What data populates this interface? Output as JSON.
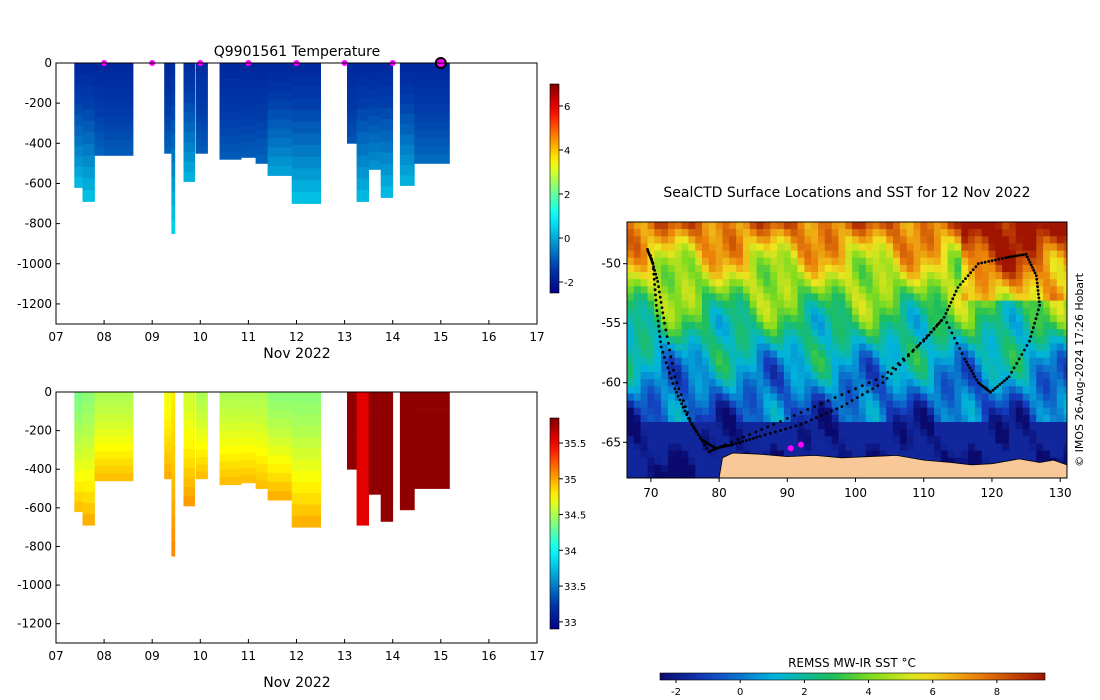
{
  "chart_data": [
    {
      "type": "heatmap",
      "title": "Q9901561  Temperature",
      "xlabel": "Nov 2022",
      "ylabel": "",
      "x_ticks": [
        "07",
        "08",
        "09",
        "10",
        "11",
        "12",
        "13",
        "14",
        "15",
        "16",
        "17"
      ],
      "xlim": [
        7,
        17
      ],
      "y_ticks": [
        0,
        -200,
        -400,
        -600,
        -800,
        -1000,
        -1200
      ],
      "ylim": [
        -1300,
        0
      ],
      "colorbar": {
        "ticks": [
          -2,
          0,
          2,
          4,
          6
        ],
        "range": [
          -2.5,
          7
        ]
      },
      "surface_markers": [
        8.0,
        9.0,
        10.0,
        11.0,
        12.0,
        13.0,
        14.0
      ],
      "current_marker": 15.0,
      "profiles": [
        {
          "x0": 7.38,
          "x1": 7.55,
          "depth": 620,
          "t_surface": -1.7,
          "t_bottom": 0.3
        },
        {
          "x0": 7.55,
          "x1": 7.8,
          "depth": 690,
          "t_surface": -1.7,
          "t_bottom": 0.4
        },
        {
          "x0": 7.8,
          "x1": 8.0,
          "depth": 460,
          "t_surface": -1.7,
          "t_bottom": -0.8
        },
        {
          "x0": 8.0,
          "x1": 8.6,
          "depth": 460,
          "t_surface": -1.7,
          "t_bottom": -0.9
        },
        {
          "x0": 9.25,
          "x1": 9.4,
          "depth": 450,
          "t_surface": -1.7,
          "t_bottom": -0.8
        },
        {
          "x0": 9.4,
          "x1": 9.47,
          "depth": 850,
          "t_surface": -1.6,
          "t_bottom": 0.6
        },
        {
          "x0": 9.65,
          "x1": 9.88,
          "depth": 590,
          "t_surface": -1.6,
          "t_bottom": 0.2
        },
        {
          "x0": 9.9,
          "x1": 10.15,
          "depth": 450,
          "t_surface": -1.6,
          "t_bottom": -0.9
        },
        {
          "x0": 10.4,
          "x1": 10.85,
          "depth": 480,
          "t_surface": -1.7,
          "t_bottom": -0.9
        },
        {
          "x0": 10.85,
          "x1": 11.15,
          "depth": 470,
          "t_surface": -1.7,
          "t_bottom": -0.9
        },
        {
          "x0": 11.15,
          "x1": 11.4,
          "depth": 500,
          "t_surface": -1.7,
          "t_bottom": -0.8
        },
        {
          "x0": 11.4,
          "x1": 11.9,
          "depth": 560,
          "t_surface": -1.7,
          "t_bottom": 0.0
        },
        {
          "x0": 11.9,
          "x1": 12.5,
          "depth": 700,
          "t_surface": -1.7,
          "t_bottom": 0.4
        },
        {
          "x0": 13.05,
          "x1": 13.25,
          "depth": 400,
          "t_surface": -1.7,
          "t_bottom": -1.0
        },
        {
          "x0": 13.25,
          "x1": 13.5,
          "depth": 690,
          "t_surface": -1.7,
          "t_bottom": 0.3
        },
        {
          "x0": 13.5,
          "x1": 13.75,
          "depth": 530,
          "t_surface": -1.7,
          "t_bottom": -0.2
        },
        {
          "x0": 13.75,
          "x1": 14.0,
          "depth": 670,
          "t_surface": -1.7,
          "t_bottom": 0.3
        },
        {
          "x0": 14.15,
          "x1": 14.45,
          "depth": 610,
          "t_surface": -1.7,
          "t_bottom": 0.2
        },
        {
          "x0": 14.45,
          "x1": 15.18,
          "depth": 500,
          "t_surface": -1.7,
          "t_bottom": -0.7
        }
      ]
    },
    {
      "type": "heatmap",
      "title": "",
      "xlabel": "Nov 2022",
      "ylabel": "",
      "x_ticks": [
        "07",
        "08",
        "09",
        "10",
        "11",
        "12",
        "13",
        "14",
        "15",
        "16",
        "17"
      ],
      "xlim": [
        7,
        17
      ],
      "y_ticks": [
        0,
        -200,
        -400,
        -600,
        -800,
        -1000,
        -1200
      ],
      "ylim": [
        -1300,
        0
      ],
      "colorbar": {
        "ticks": [
          33,
          33.5,
          34,
          34.5,
          35,
          35.5
        ],
        "range": [
          32.9,
          35.85
        ]
      },
      "profiles": [
        {
          "x0": 7.38,
          "x1": 7.55,
          "depth": 620,
          "s_surface": 34.35,
          "s_bottom": 34.95
        },
        {
          "x0": 7.55,
          "x1": 7.8,
          "depth": 690,
          "s_surface": 34.4,
          "s_bottom": 35.0
        },
        {
          "x0": 7.8,
          "x1": 8.0,
          "depth": 460,
          "s_surface": 34.5,
          "s_bottom": 34.95
        },
        {
          "x0": 8.0,
          "x1": 8.6,
          "depth": 460,
          "s_surface": 34.5,
          "s_bottom": 34.95
        },
        {
          "x0": 9.25,
          "x1": 9.4,
          "depth": 450,
          "s_surface": 34.7,
          "s_bottom": 35.0
        },
        {
          "x0": 9.4,
          "x1": 9.47,
          "depth": 850,
          "s_surface": 34.8,
          "s_bottom": 35.1
        },
        {
          "x0": 9.65,
          "x1": 9.88,
          "depth": 590,
          "s_surface": 34.6,
          "s_bottom": 35.05
        },
        {
          "x0": 9.9,
          "x1": 10.15,
          "depth": 450,
          "s_surface": 34.5,
          "s_bottom": 34.95
        },
        {
          "x0": 10.4,
          "x1": 10.85,
          "depth": 480,
          "s_surface": 34.5,
          "s_bottom": 34.95
        },
        {
          "x0": 10.85,
          "x1": 11.15,
          "depth": 470,
          "s_surface": 34.5,
          "s_bottom": 34.95
        },
        {
          "x0": 11.15,
          "x1": 11.4,
          "depth": 500,
          "s_surface": 34.5,
          "s_bottom": 34.95
        },
        {
          "x0": 11.4,
          "x1": 11.9,
          "depth": 560,
          "s_surface": 34.4,
          "s_bottom": 35.0
        },
        {
          "x0": 11.9,
          "x1": 12.5,
          "depth": 700,
          "s_surface": 34.4,
          "s_bottom": 35.0
        },
        {
          "x0": 13.05,
          "x1": 13.25,
          "depth": 400,
          "s_surface": 35.8,
          "s_bottom": 35.8
        },
        {
          "x0": 13.25,
          "x1": 13.5,
          "depth": 690,
          "s_surface": 35.55,
          "s_bottom": 35.55
        },
        {
          "x0": 13.5,
          "x1": 13.75,
          "depth": 530,
          "s_surface": 35.8,
          "s_bottom": 35.8
        },
        {
          "x0": 13.75,
          "x1": 14.0,
          "depth": 670,
          "s_surface": 35.8,
          "s_bottom": 35.8
        },
        {
          "x0": 14.15,
          "x1": 14.45,
          "depth": 610,
          "s_surface": 35.8,
          "s_bottom": 35.8
        },
        {
          "x0": 14.45,
          "x1": 15.18,
          "depth": 500,
          "s_surface": 35.8,
          "s_bottom": 35.8
        }
      ]
    },
    {
      "type": "heatmap",
      "title": "SealCTD Surface Locations and SST for 12 Nov 2022",
      "xlabel": "",
      "ylabel": "",
      "x_ticks": [
        70,
        80,
        90,
        100,
        110,
        120,
        130
      ],
      "xlim": [
        66.5,
        131
      ],
      "y_ticks": [
        -50,
        -55,
        -60,
        -65
      ],
      "ylim": [
        -68,
        -46.5
      ],
      "colorbar_label": "REMSS MW-IR SST °C",
      "colorbar": {
        "ticks": [
          -2,
          0,
          2,
          4,
          6,
          8
        ],
        "range": [
          -2.5,
          9.5
        ]
      },
      "track": [
        [
          69.5,
          -48.8
        ],
        [
          70.3,
          -50.0
        ],
        [
          70.8,
          -53.5
        ],
        [
          71.5,
          -57.0
        ],
        [
          73.5,
          -60.5
        ],
        [
          75.5,
          -63.0
        ],
        [
          77.5,
          -64.8
        ],
        [
          79.5,
          -65.5
        ],
        [
          82.0,
          -65.2
        ],
        [
          86.0,
          -64.5
        ],
        [
          92.0,
          -63.5
        ],
        [
          98.0,
          -62.0
        ],
        [
          104.0,
          -60.0
        ],
        [
          109.0,
          -57.0
        ],
        [
          113.0,
          -54.5
        ],
        [
          115.0,
          -52.0
        ],
        [
          118.0,
          -50.0
        ],
        [
          122.0,
          -49.5
        ],
        [
          125.0,
          -49.2
        ],
        [
          126.5,
          -51.0
        ],
        [
          127.0,
          -53.5
        ],
        [
          125.5,
          -56.5
        ],
        [
          122.5,
          -59.5
        ],
        [
          119.8,
          -60.8
        ],
        [
          118.0,
          -60.0
        ],
        [
          116.0,
          -58.0
        ],
        [
          113.0,
          -54.5
        ],
        [
          110.0,
          -56.5
        ],
        [
          104.0,
          -59.5
        ],
        [
          96.0,
          -61.5
        ],
        [
          88.0,
          -63.5
        ],
        [
          81.0,
          -65.2
        ],
        [
          78.5,
          -65.8
        ],
        [
          76.0,
          -63.5
        ],
        [
          73.5,
          -59.5
        ],
        [
          72.0,
          -55.0
        ],
        [
          71.0,
          -51.5
        ],
        [
          69.8,
          -49.0
        ]
      ],
      "magenta_points": [
        [
          90.5,
          -65.5
        ],
        [
          92.0,
          -65.2
        ]
      ],
      "side_label": "© IMOS 26-Aug-2024 17:26 Hobart"
    }
  ],
  "colors": {
    "marker": "#ff00ff",
    "land": "#f8c898",
    "axis": "#000000"
  }
}
